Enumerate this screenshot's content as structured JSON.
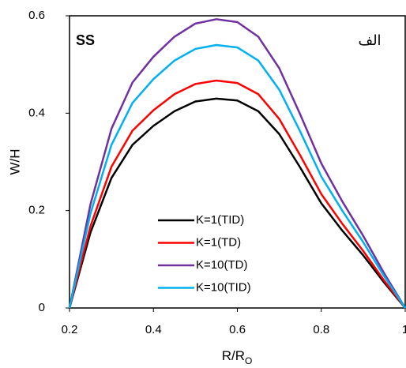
{
  "chart_data": {
    "type": "line",
    "annotation_left": "SS",
    "annotation_right": "الف",
    "y_label": "W/H",
    "x_label": "R/R",
    "x_label_sub": "O",
    "x": [
      0.2,
      0.25,
      0.3,
      0.35,
      0.4,
      0.45,
      0.5,
      0.55,
      0.6,
      0.65,
      0.7,
      0.75,
      0.8,
      0.85,
      0.9,
      0.95,
      1
    ],
    "series": [
      {
        "name": "K=1(TID)",
        "color": "#000000",
        "values": [
          0,
          0.155,
          0.267,
          0.335,
          0.374,
          0.404,
          0.424,
          0.43,
          0.426,
          0.404,
          0.357,
          0.288,
          0.215,
          0.159,
          0.108,
          0.052,
          0
        ]
      },
      {
        "name": "K=1(TD)",
        "color": "#ff0000",
        "values": [
          0,
          0.168,
          0.29,
          0.364,
          0.406,
          0.439,
          0.46,
          0.467,
          0.462,
          0.439,
          0.388,
          0.313,
          0.234,
          0.173,
          0.117,
          0.056,
          0
        ]
      },
      {
        "name": "K=10(TD)",
        "color": "#7030a0",
        "values": [
          0,
          0.213,
          0.368,
          0.463,
          0.516,
          0.557,
          0.584,
          0.593,
          0.587,
          0.557,
          0.492,
          0.397,
          0.297,
          0.219,
          0.148,
          0.071,
          0
        ]
      },
      {
        "name": "K=10(TID)",
        "color": "#00b0f0",
        "values": [
          0,
          0.194,
          0.335,
          0.421,
          0.47,
          0.508,
          0.532,
          0.54,
          0.535,
          0.508,
          0.448,
          0.362,
          0.27,
          0.2,
          0.135,
          0.065,
          0
        ]
      }
    ],
    "xlim": [
      0.2,
      1
    ],
    "xticks": [
      0.2,
      0.4,
      0.6,
      0.8,
      1
    ],
    "ylim": [
      0,
      0.6
    ],
    "yticks": [
      0,
      0.2,
      0.4,
      0.6
    ]
  }
}
